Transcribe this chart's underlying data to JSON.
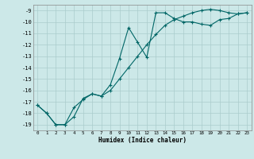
{
  "xlabel": "Humidex (Indice chaleur)",
  "bg_color": "#cce8e8",
  "grid_color": "#aacccc",
  "line_color": "#006666",
  "xlim": [
    -0.5,
    23.5
  ],
  "ylim": [
    -19.5,
    -8.5
  ],
  "yticks": [
    -19,
    -18,
    -17,
    -16,
    -15,
    -14,
    -13,
    -12,
    -11,
    -10,
    -9
  ],
  "xticks": [
    0,
    1,
    2,
    3,
    4,
    5,
    6,
    7,
    8,
    9,
    10,
    11,
    12,
    13,
    14,
    15,
    16,
    17,
    18,
    19,
    20,
    21,
    22,
    23
  ],
  "line1_x": [
    0,
    1,
    2,
    3,
    4,
    5,
    6,
    7,
    8,
    9,
    10,
    11,
    12,
    13,
    14,
    15,
    16,
    17,
    18,
    19,
    20,
    21,
    22,
    23
  ],
  "line1_y": [
    -17.3,
    -18.0,
    -19.0,
    -19.0,
    -18.3,
    -16.7,
    -16.3,
    -16.5,
    -15.5,
    -13.2,
    -10.5,
    -11.8,
    -13.1,
    -9.2,
    -9.2,
    -9.7,
    -10.0,
    -10.0,
    -10.2,
    -10.3,
    -9.8,
    -9.7,
    -9.3,
    -9.2
  ],
  "line2_x": [
    0,
    1,
    2,
    3,
    4,
    5,
    6,
    7,
    8,
    9,
    10,
    11,
    12,
    13,
    14,
    15,
    16,
    17,
    18,
    19,
    20,
    21,
    22,
    23
  ],
  "line2_y": [
    -17.3,
    -18.0,
    -19.0,
    -19.0,
    -17.5,
    -16.8,
    -16.3,
    -16.5,
    -16.0,
    -15.0,
    -14.0,
    -13.0,
    -12.0,
    -11.1,
    -10.3,
    -9.8,
    -9.5,
    -9.2,
    -9.0,
    -8.9,
    -9.0,
    -9.2,
    -9.3,
    -9.2
  ]
}
